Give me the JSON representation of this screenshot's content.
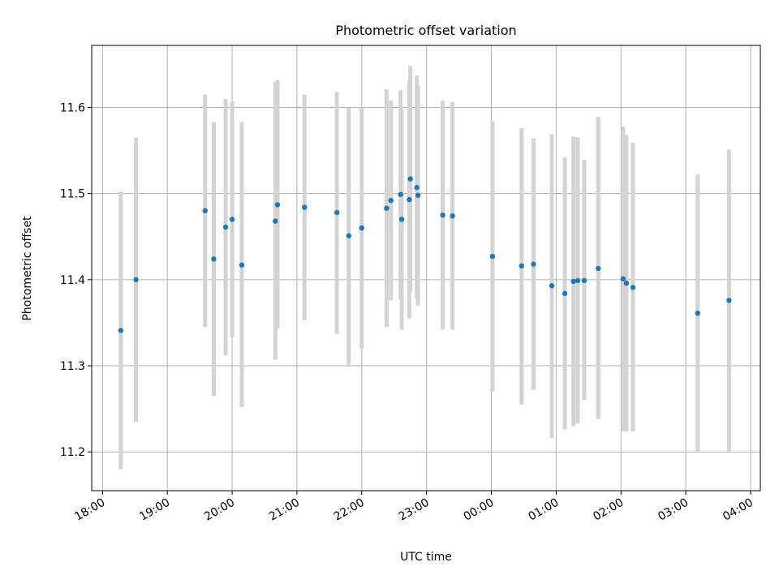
{
  "chart_data": {
    "type": "scatter",
    "title": "Photometric offset variation",
    "xlabel": "UTC time",
    "ylabel": "Photometric offset",
    "ylim": [
      11.155,
      11.672
    ],
    "xlim": [
      "17:50",
      "04:09"
    ],
    "x_ticks": [
      "18:00",
      "19:00",
      "20:00",
      "21:00",
      "22:00",
      "23:00",
      "00:00",
      "01:00",
      "02:00",
      "03:00",
      "04:00"
    ],
    "y_ticks": [
      "11.2",
      "11.3",
      "11.4",
      "11.5",
      "11.6"
    ],
    "grid": true,
    "colors": {
      "points": "#1f77b4",
      "errorbars": "#d3d3d3",
      "grid": "#b0b0b0"
    },
    "points": [
      {
        "x": "18:17",
        "y": 11.341,
        "lo": 11.18,
        "hi": 11.502
      },
      {
        "x": "18:31",
        "y": 11.4,
        "lo": 11.235,
        "hi": 11.565
      },
      {
        "x": "19:35",
        "y": 11.48,
        "lo": 11.345,
        "hi": 11.615
      },
      {
        "x": "19:43",
        "y": 11.424,
        "lo": 11.265,
        "hi": 11.583
      },
      {
        "x": "19:54",
        "y": 11.461,
        "lo": 11.312,
        "hi": 11.61
      },
      {
        "x": "20:00",
        "y": 11.47,
        "lo": 11.333,
        "hi": 11.607
      },
      {
        "x": "20:09",
        "y": 11.417,
        "lo": 11.252,
        "hi": 11.583
      },
      {
        "x": "20:40",
        "y": 11.468,
        "lo": 11.307,
        "hi": 11.63
      },
      {
        "x": "20:42",
        "y": 11.487,
        "lo": 11.343,
        "hi": 11.632
      },
      {
        "x": "21:07",
        "y": 11.484,
        "lo": 11.353,
        "hi": 11.615
      },
      {
        "x": "21:37",
        "y": 11.478,
        "lo": 11.337,
        "hi": 11.618
      },
      {
        "x": "21:48",
        "y": 11.451,
        "lo": 11.3,
        "hi": 11.6
      },
      {
        "x": "22:00",
        "y": 11.46,
        "lo": 11.32,
        "hi": 11.6
      },
      {
        "x": "22:23",
        "y": 11.483,
        "lo": 11.345,
        "hi": 11.621
      },
      {
        "x": "22:27",
        "y": 11.492,
        "lo": 11.376,
        "hi": 11.608
      },
      {
        "x": "22:36",
        "y": 11.499,
        "lo": 11.377,
        "hi": 11.62
      },
      {
        "x": "22:37",
        "y": 11.47,
        "lo": 11.342,
        "hi": 11.598
      },
      {
        "x": "22:44",
        "y": 11.493,
        "lo": 11.355,
        "hi": 11.631
      },
      {
        "x": "22:45",
        "y": 11.517,
        "lo": 11.386,
        "hi": 11.648
      },
      {
        "x": "22:51",
        "y": 11.507,
        "lo": 11.378,
        "hi": 11.637
      },
      {
        "x": "22:52",
        "y": 11.498,
        "lo": 11.37,
        "hi": 11.626
      },
      {
        "x": "23:15",
        "y": 11.475,
        "lo": 11.342,
        "hi": 11.608
      },
      {
        "x": "23:24",
        "y": 11.474,
        "lo": 11.342,
        "hi": 11.606
      },
      {
        "x": "00:01",
        "y": 11.427,
        "lo": 11.27,
        "hi": 11.584
      },
      {
        "x": "00:28",
        "y": 11.416,
        "lo": 11.255,
        "hi": 11.576
      },
      {
        "x": "00:39",
        "y": 11.418,
        "lo": 11.272,
        "hi": 11.564
      },
      {
        "x": "00:56",
        "y": 11.393,
        "lo": 11.216,
        "hi": 11.569
      },
      {
        "x": "01:08",
        "y": 11.384,
        "lo": 11.226,
        "hi": 11.542
      },
      {
        "x": "01:16",
        "y": 11.398,
        "lo": 11.23,
        "hi": 11.566
      },
      {
        "x": "01:20",
        "y": 11.399,
        "lo": 11.233,
        "hi": 11.565
      },
      {
        "x": "01:26",
        "y": 11.399,
        "lo": 11.26,
        "hi": 11.539
      },
      {
        "x": "01:39",
        "y": 11.413,
        "lo": 11.238,
        "hi": 11.589
      },
      {
        "x": "02:02",
        "y": 11.401,
        "lo": 11.224,
        "hi": 11.578
      },
      {
        "x": "02:05",
        "y": 11.396,
        "lo": 11.224,
        "hi": 11.568
      },
      {
        "x": "02:11",
        "y": 11.391,
        "lo": 11.224,
        "hi": 11.559
      },
      {
        "x": "03:11",
        "y": 11.361,
        "lo": 11.2,
        "hi": 11.522
      },
      {
        "x": "03:40",
        "y": 11.376,
        "lo": 11.2,
        "hi": 11.551
      }
    ]
  }
}
